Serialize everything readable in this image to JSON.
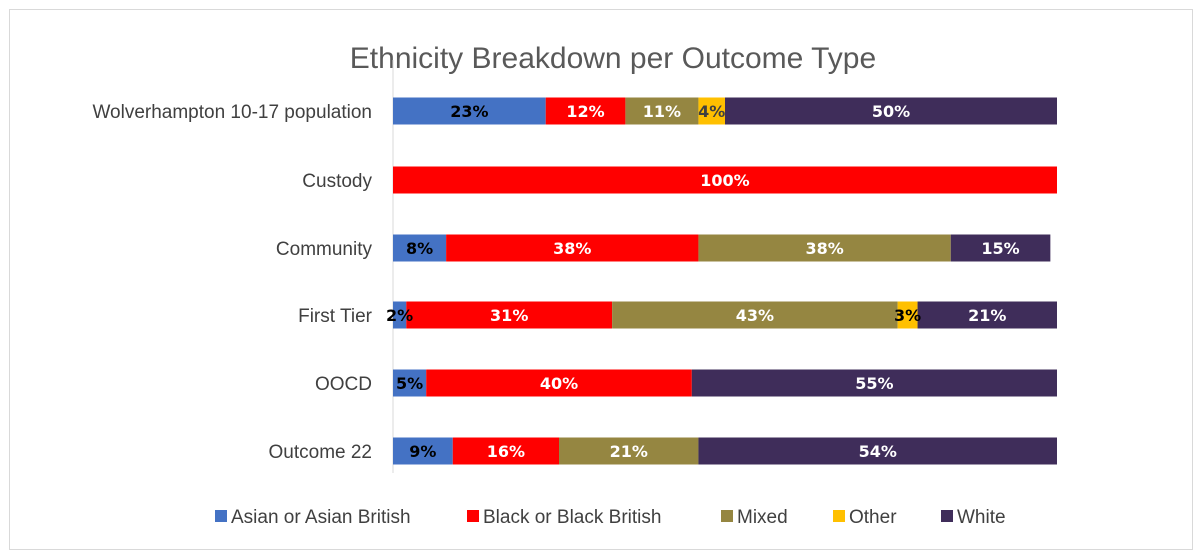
{
  "chart_data": {
    "type": "bar",
    "orientation": "horizontal",
    "stacked": "percent",
    "title": "Ethnicity Breakdown per Outcome Type",
    "categories": [
      "Wolverhampton 10-17 population",
      "Custody",
      "Community",
      "First Tier",
      "OOCD",
      "Outcome 22"
    ],
    "series": [
      {
        "name": "Asian or Asian British",
        "color": "#4472c4",
        "label_color": "#000000",
        "values": [
          23,
          0,
          8,
          2,
          5,
          9
        ],
        "labels": [
          "23%",
          "",
          "8%",
          "2%",
          "5%",
          "9%"
        ]
      },
      {
        "name": "Black or Black British",
        "color": "#ff0000",
        "label_color": "#ffffff",
        "values": [
          12,
          100,
          38,
          31,
          40,
          16
        ],
        "labels": [
          "12%",
          "100%",
          "38%",
          "31%",
          "40%",
          "16%"
        ]
      },
      {
        "name": "Mixed",
        "color": "#958641",
        "label_color": "#ffffff",
        "values": [
          11,
          0,
          38,
          43,
          0,
          21
        ],
        "labels": [
          "11%",
          "",
          "38%",
          "43%",
          "",
          "21%"
        ]
      },
      {
        "name": "Other",
        "color": "#ffc000",
        "label_color": "#404040",
        "values": [
          4,
          0,
          0,
          3,
          0,
          0
        ],
        "labels": [
          "4%",
          "",
          "",
          "3%",
          "",
          ""
        ]
      },
      {
        "name": "White",
        "color": "#3f2d5a",
        "label_color": "#ffffff",
        "values": [
          50,
          0,
          15,
          21,
          55,
          54
        ],
        "labels": [
          "50%",
          "",
          "15%",
          "21%",
          "55%",
          "54%"
        ]
      }
    ],
    "xlim": [
      0,
      100
    ],
    "grid": false,
    "legend_position": "bottom"
  }
}
